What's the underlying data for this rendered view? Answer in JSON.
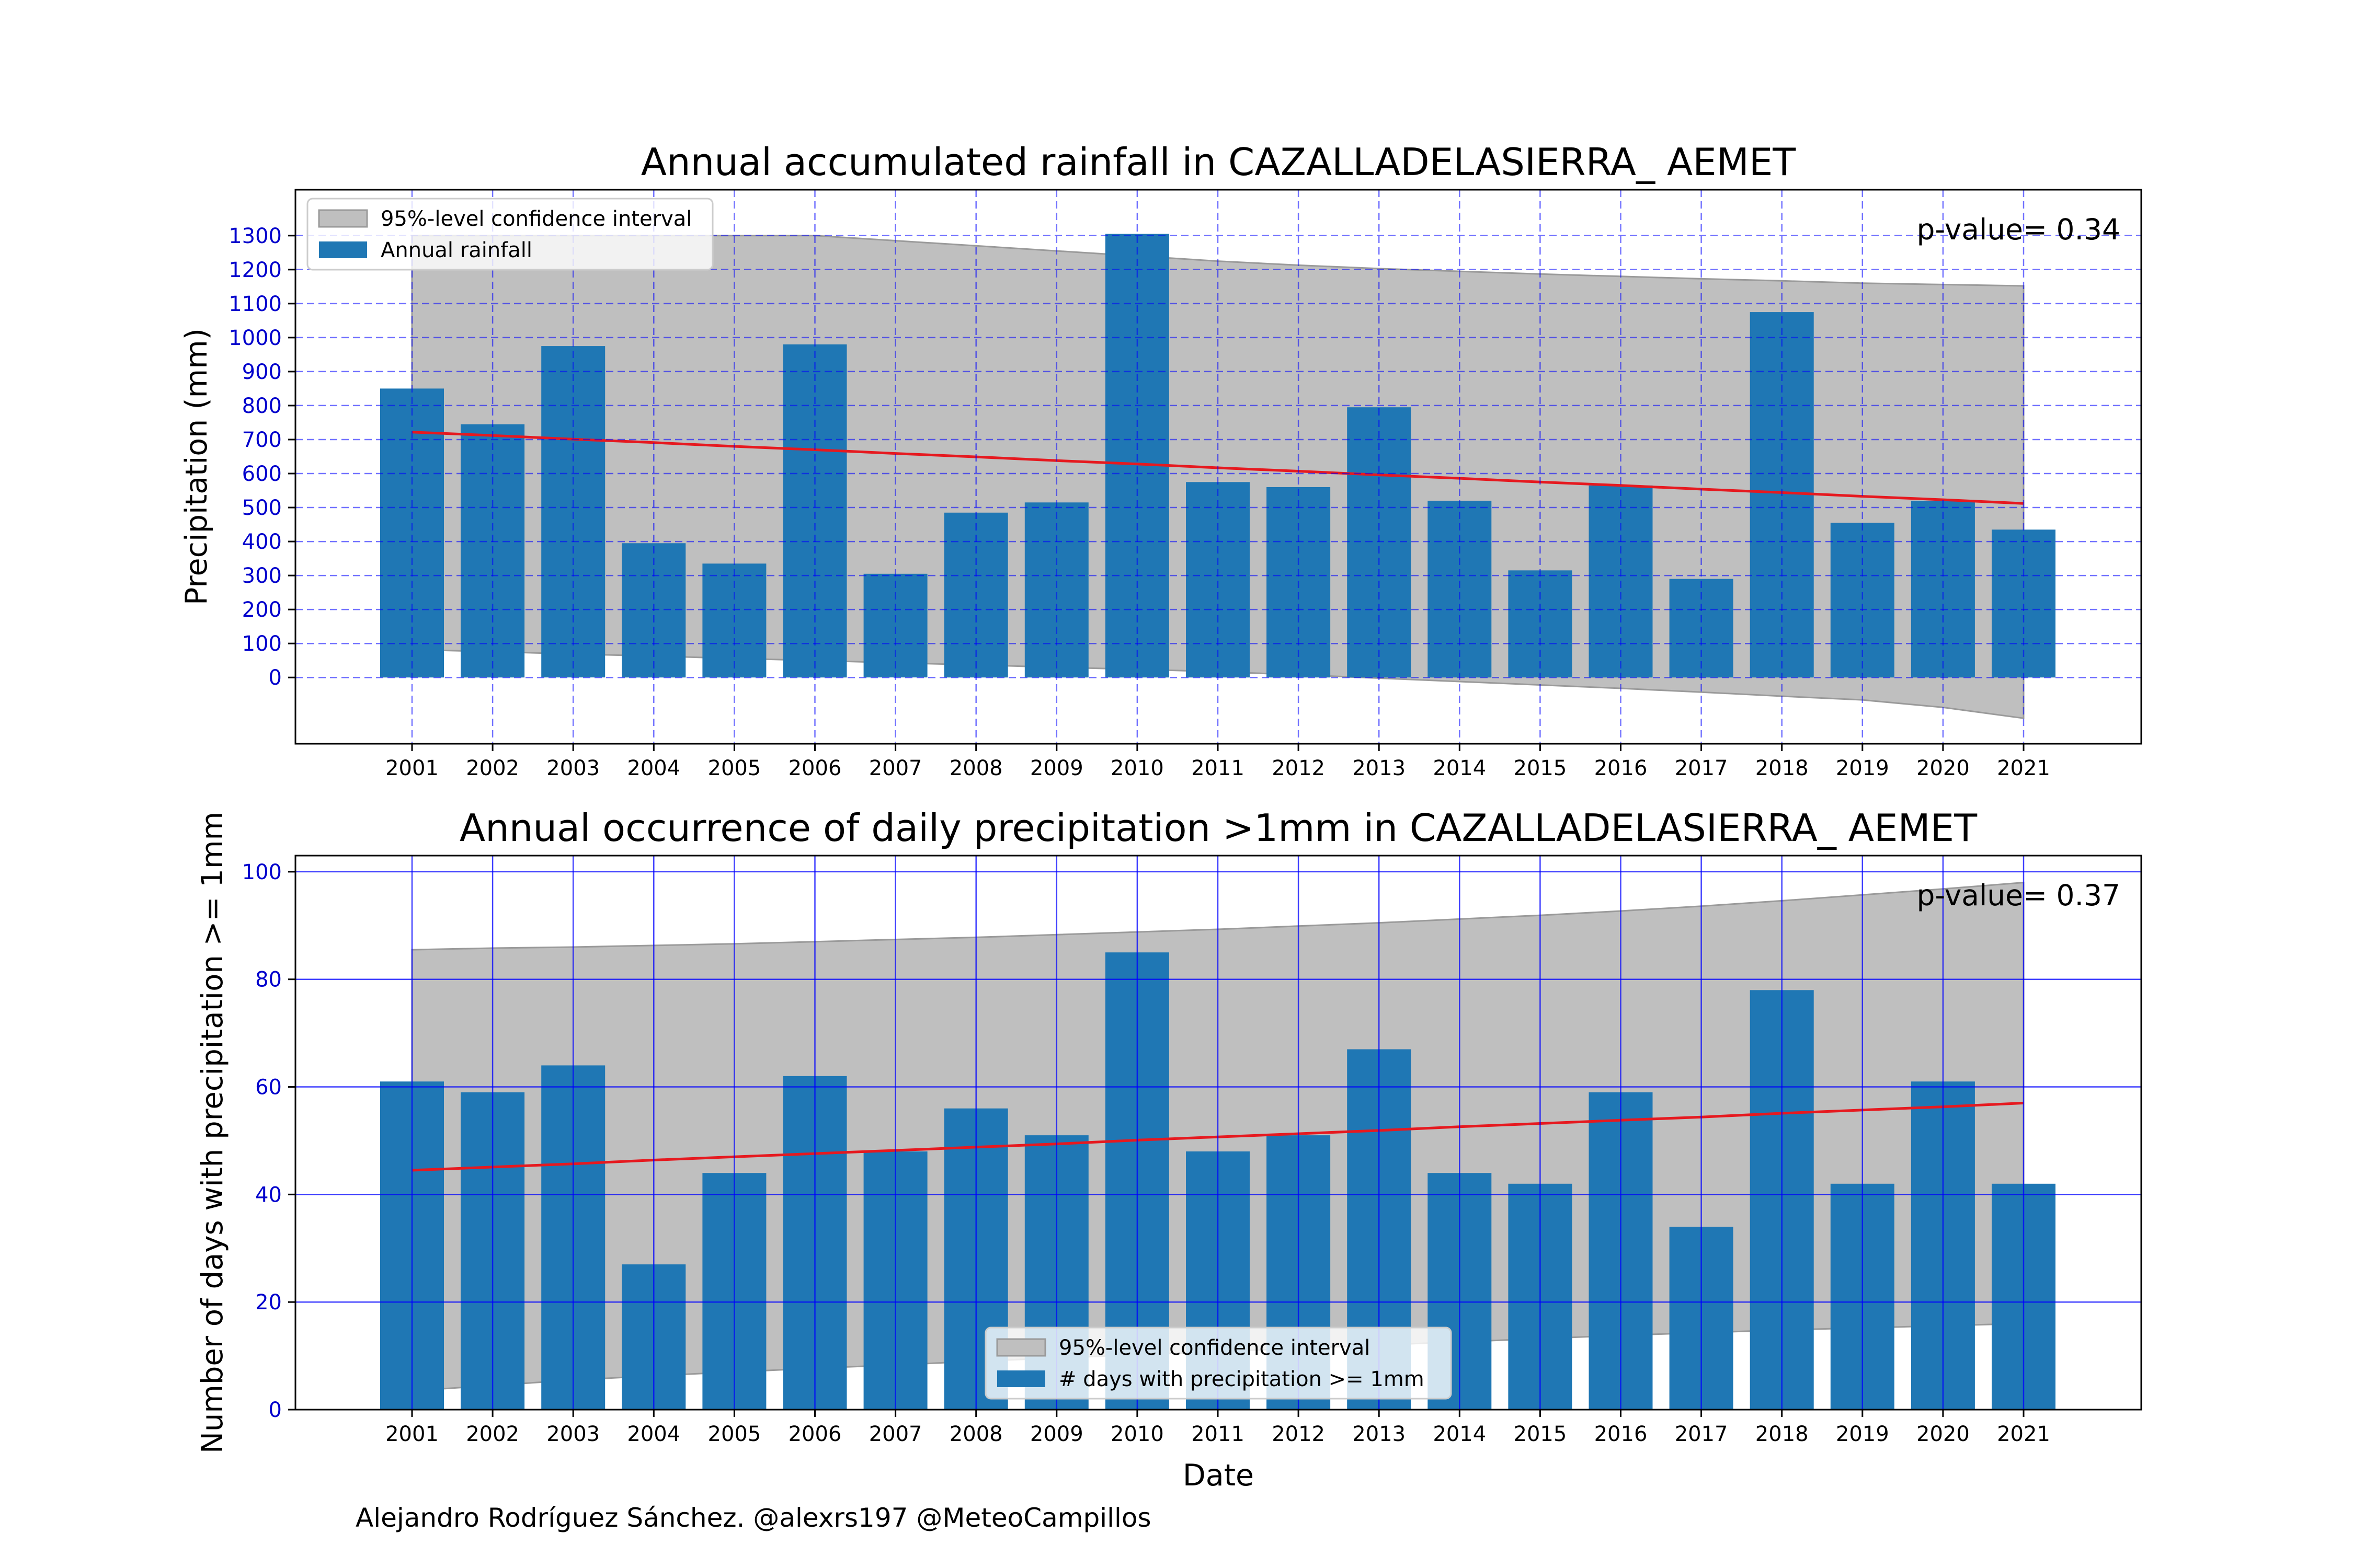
{
  "credit": "Alejandro Rodríguez Sánchez. @alexrs197 @MeteoCampillos",
  "colors": {
    "bar": "#1f77b4",
    "trend": "#e6191f",
    "band": "#bfbfbf",
    "grid": "#0000ff",
    "tick_y": "#0000cc"
  },
  "chart_data": [
    {
      "type": "bar",
      "title": "Annual accumulated rainfall in CAZALLADELASIERRA_ AEMET",
      "xlabel": "",
      "ylabel": "Precipitation (mm)",
      "annotation": "p-value= 0.34",
      "categories": [
        "2001",
        "2002",
        "2003",
        "2004",
        "2005",
        "2006",
        "2007",
        "2008",
        "2009",
        "2010",
        "2011",
        "2012",
        "2013",
        "2014",
        "2015",
        "2016",
        "2017",
        "2018",
        "2019",
        "2020",
        "2021"
      ],
      "yticks": [
        0,
        100,
        200,
        300,
        400,
        500,
        600,
        700,
        800,
        900,
        1000,
        1100,
        1200,
        1300
      ],
      "ylim": [
        -195,
        1435
      ],
      "grid": "dashed",
      "legend_position": "upper-left",
      "series": [
        {
          "label": "Annual rainfall",
          "kind": "bar",
          "values": [
            850,
            745,
            975,
            395,
            335,
            980,
            305,
            485,
            515,
            1305,
            575,
            560,
            795,
            520,
            315,
            565,
            290,
            1075,
            455,
            520,
            435
          ]
        },
        {
          "kind": "line",
          "values": [
            722,
            712,
            701,
            691,
            680,
            670,
            659,
            649,
            638,
            628,
            617,
            607,
            596,
            586,
            575,
            565,
            554,
            544,
            533,
            523,
            512
          ]
        },
        {
          "label": "95%-level confidence interval",
          "kind": "band",
          "lower": [
            82,
            76,
            69,
            63,
            56,
            50,
            43,
            37,
            30,
            24,
            17,
            8,
            -2,
            -12,
            -22,
            -32,
            -43,
            -55,
            -66,
            -88,
            -120
          ],
          "upper": [
            1300,
            1300,
            1300,
            1300,
            1300,
            1300,
            1285,
            1270,
            1255,
            1240,
            1225,
            1213,
            1203,
            1195,
            1187,
            1180,
            1173,
            1167,
            1160,
            1156,
            1152
          ]
        }
      ]
    },
    {
      "type": "bar",
      "title": "Annual occurrence of daily precipitation >1mm in CAZALLADELASIERRA_ AEMET",
      "xlabel": "Date",
      "ylabel": "Number of days with precipitation >= 1mm",
      "annotation": "p-value= 0.37",
      "categories": [
        "2001",
        "2002",
        "2003",
        "2004",
        "2005",
        "2006",
        "2007",
        "2008",
        "2009",
        "2010",
        "2011",
        "2012",
        "2013",
        "2014",
        "2015",
        "2016",
        "2017",
        "2018",
        "2019",
        "2020",
        "2021"
      ],
      "yticks": [
        0,
        20,
        40,
        60,
        80,
        100
      ],
      "ylim": [
        0,
        103
      ],
      "grid": "solid",
      "legend_position": "lower-center",
      "series": [
        {
          "label": "# days with precipitation >= 1mm",
          "kind": "bar",
          "values": [
            61,
            59,
            64,
            27,
            44,
            62,
            48,
            56,
            51,
            85,
            48,
            51,
            67,
            44,
            42,
            59,
            34,
            78,
            42,
            61,
            42
          ]
        },
        {
          "kind": "line",
          "values": [
            44.5,
            45.1,
            45.7,
            46.4,
            47.0,
            47.6,
            48.2,
            48.8,
            49.4,
            50.1,
            50.7,
            51.3,
            51.9,
            52.6,
            53.2,
            53.8,
            54.4,
            55.1,
            55.7,
            56.3,
            57.0
          ]
        },
        {
          "label": "95%-level confidence interval",
          "kind": "band",
          "lower": [
            3.5,
            4.5,
            5.5,
            6.3,
            7.0,
            7.7,
            8.3,
            9.0,
            9.6,
            10.2,
            10.8,
            11.4,
            12.0,
            12.6,
            13.2,
            13.8,
            14.3,
            14.8,
            15.2,
            15.6,
            16.0
          ],
          "upper": [
            85.5,
            85.8,
            86.0,
            86.3,
            86.6,
            87.0,
            87.4,
            87.8,
            88.3,
            88.8,
            89.3,
            89.9,
            90.5,
            91.2,
            91.9,
            92.7,
            93.6,
            94.6,
            95.7,
            96.8,
            98.0
          ]
        }
      ]
    }
  ]
}
